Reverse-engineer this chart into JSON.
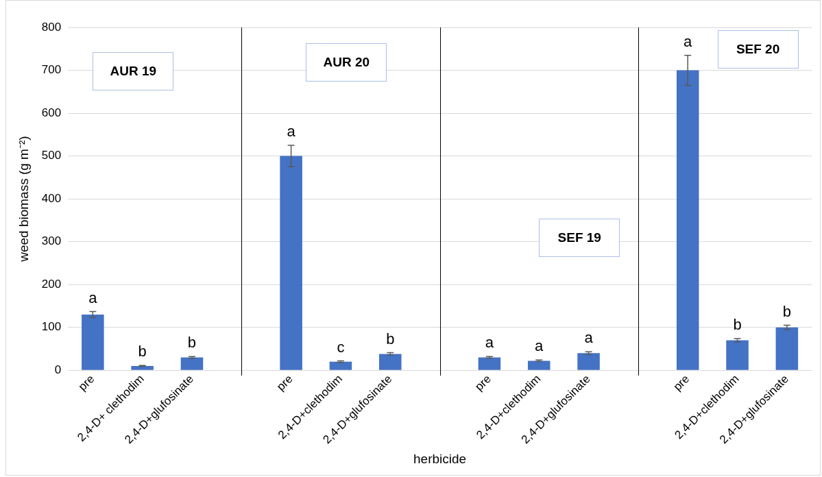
{
  "chart_data": {
    "type": "bar",
    "xlabel": "herbicide",
    "ylabel": "weed biomass (g m⁻²)",
    "categories": [
      "pre",
      "2,4-D+ clethodim",
      "2,4-D+glufosinate",
      null,
      "pre",
      "2,4-D+clethodim",
      "2,4-D+glufosinate",
      null,
      "pre",
      "2,4-D+clethodim",
      "2,4-D+glufosinate",
      null,
      "pre",
      "2,4-D+clethodim",
      "2,4-D+glufosinate"
    ],
    "values": [
      130,
      10,
      30,
      null,
      500,
      20,
      38,
      null,
      30,
      22,
      40,
      null,
      700,
      70,
      100
    ],
    "errors": [
      7,
      1,
      2,
      null,
      25,
      2,
      3,
      null,
      2,
      2,
      3,
      null,
      35,
      4,
      5
    ],
    "value_labels": [
      "a",
      "b",
      "b",
      null,
      "a",
      "c",
      "b",
      null,
      "a",
      "a",
      "a",
      null,
      "a",
      "b",
      "b"
    ],
    "color": "#4472c4",
    "ylim": [
      0,
      800
    ],
    "yticks": [
      0,
      100,
      200,
      300,
      400,
      500,
      600,
      700,
      800
    ],
    "grid": "y",
    "legend": false,
    "annotations": [
      "AUR 19",
      "AUR 20",
      "SEF 19",
      "SEF 20"
    ]
  }
}
